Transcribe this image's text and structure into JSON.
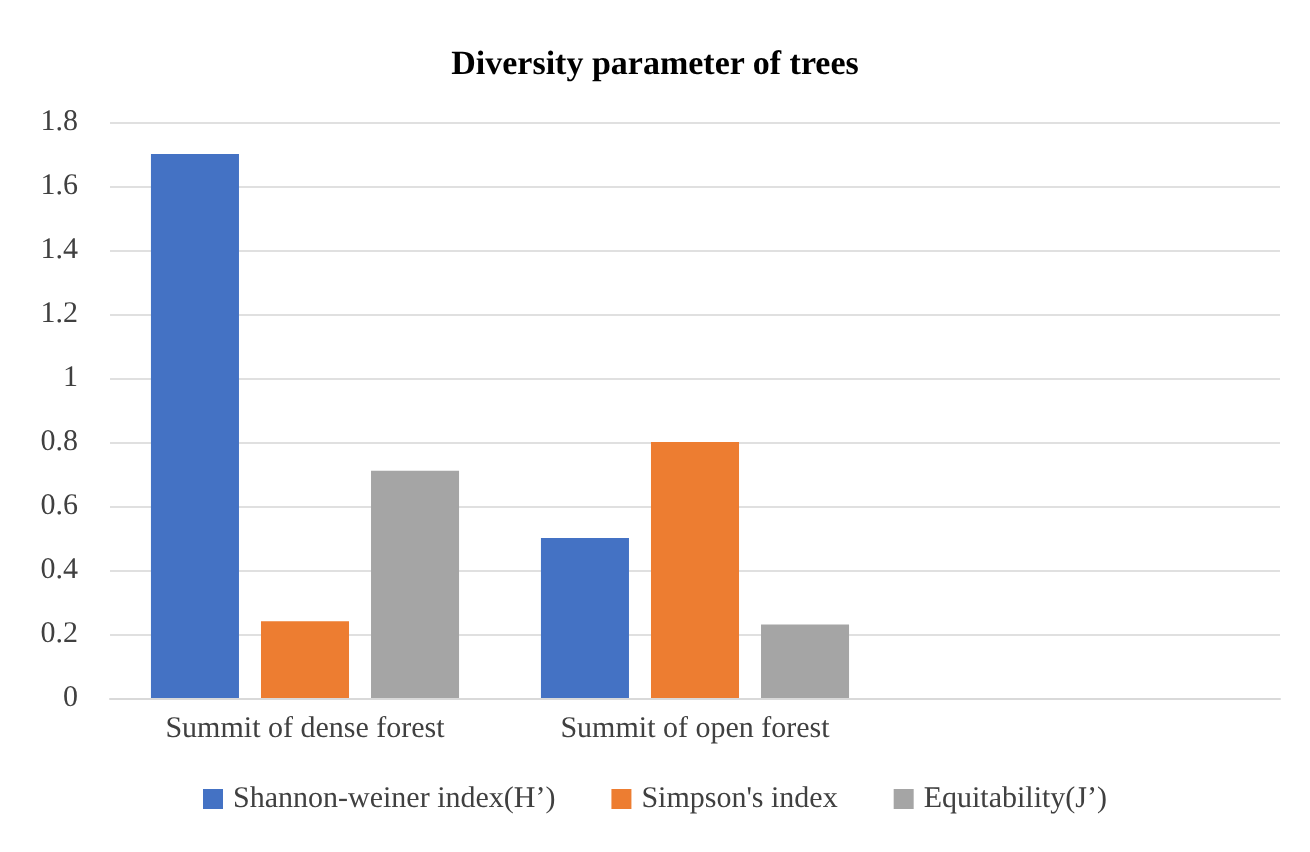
{
  "chart_data": {
    "type": "bar",
    "title": "Diversity parameter of trees",
    "categories": [
      "Summit of dense forest",
      "Summit of open forest",
      null
    ],
    "series": [
      {
        "name": "Shannon-weiner index(H’)",
        "color": "#4472c4",
        "values": [
          1.7,
          0.5,
          null
        ]
      },
      {
        "name": "Simpson's index",
        "color": "#ed7d31",
        "values": [
          0.24,
          0.8,
          null
        ]
      },
      {
        "name": "Equitability(J’)",
        "color": "#a5a5a5",
        "values": [
          0.71,
          0.23,
          null
        ]
      }
    ],
    "ylim": [
      0,
      1.8
    ],
    "yticks": [
      0,
      0.2,
      0.4,
      0.6,
      0.8,
      1,
      1.2,
      1.4,
      1.6,
      1.8
    ],
    "grid": "y",
    "legend": "bottom"
  }
}
